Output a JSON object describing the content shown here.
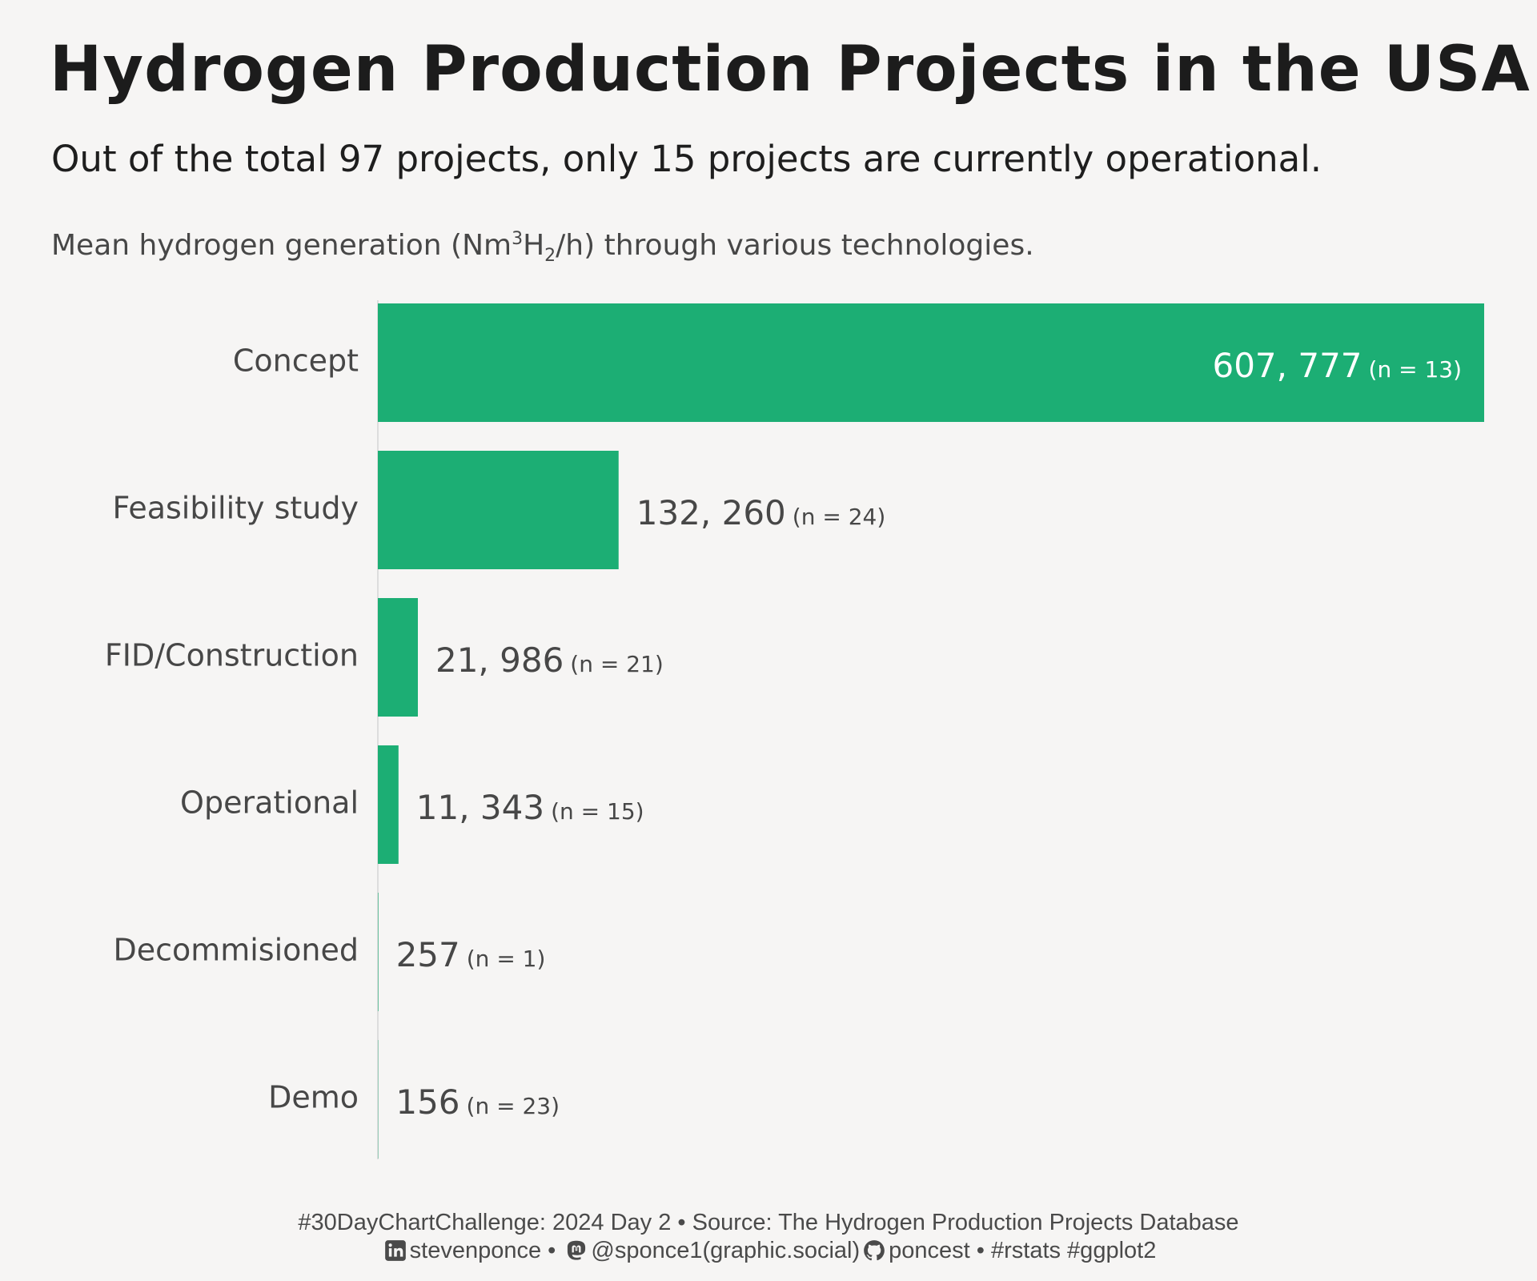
{
  "title": "Hydrogen Production Projects in the USA",
  "subtitle": "Out of the total 97 projects, only 15 projects are currently operational.",
  "plot_caption": {
    "pre": "Mean hydrogen generation (Nm",
    "sup": "3",
    "mid": "H",
    "sub": "2",
    "post": "/h) through various technologies."
  },
  "chart_data": {
    "type": "bar",
    "orientation": "horizontal",
    "categories": [
      "Concept",
      "Feasibility study",
      "FID/Construction",
      "Operational",
      "Decommisioned",
      "Demo"
    ],
    "values": [
      607777,
      132260,
      21986,
      11343,
      257,
      156
    ],
    "value_labels": [
      "607, 777",
      "132, 260",
      "21, 986",
      "11, 343",
      "257",
      "156"
    ],
    "n_labels": [
      "(n = 13)",
      "(n = 24)",
      "(n = 21)",
      "(n = 15)",
      "(n = 1)",
      "(n = 23)"
    ],
    "xlim": [
      0,
      607777
    ],
    "grid": false,
    "legend": "none",
    "bar_color": "#1cae74"
  },
  "footer": {
    "line1": "#30DayChartChallenge:  2024 Day 2 • Source: The Hydrogen Production Projects Database",
    "linkedin": "stevenponce",
    "sep1": " • ",
    "mastodon": "@sponce1(graphic.social)",
    "github": "poncest",
    "tags": " • #rstats #ggplot2",
    "icons": [
      "linkedin-icon",
      "mastodon-icon",
      "github-icon"
    ]
  }
}
